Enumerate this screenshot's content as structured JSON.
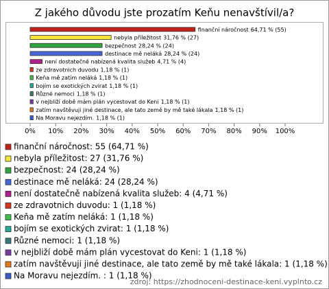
{
  "chart_data": {
    "type": "bar",
    "orientation": "horizontal",
    "title": "Z jakého důvodu jste prozatím Keňu nenavštívil/a?",
    "categories": [
      "finanční náročnost",
      "nebyla příležitost",
      "bezpečnost",
      "destinace mě neláká",
      "není dostatečně nabízená kvalita služeb",
      "ze zdravotnich duvodu",
      "Keňa mě zatím neláká",
      "bojím se exotických zvirat",
      "Různé nemoci",
      "v nejbliží době mám plán vycestovat do Keni",
      "zatím navštěvuji jiné destinace, ale tato země by mě také lákala",
      "Na Moravu nejezdím."
    ],
    "values": [
      64.71,
      31.76,
      28.24,
      28.24,
      4.71,
      1.18,
      1.18,
      1.18,
      1.18,
      1.18,
      1.18,
      1.18
    ],
    "counts": [
      55,
      27,
      24,
      24,
      4,
      1,
      1,
      1,
      1,
      1,
      1,
      1
    ],
    "value_labels": [
      "64,71 % (55)",
      "31,76 % (27)",
      "28,24 % (24)",
      "28,24 % (24)",
      "4,71 % (4)",
      "1,18 % (1)",
      "1,18 % (1)",
      "1,18 % (1)",
      "1,18 % (1)",
      "1,18 % (1)",
      "1,18 % (1)",
      "1,18 % (1)"
    ],
    "legend_labels": [
      "finanční náročnost: 55 (64,71 %)",
      "nebyla příležitost: 27 (31,76 %)",
      "bezpečnost: 24 (28,24 %)",
      "destinace mě neláká: 24 (28,24 %)",
      "není dostatečně nabízená kvalita služeb: 4 (4,71 %)",
      "ze zdravotnich duvodu: 1 (1,18 %)",
      "Keňa mě zatím neláká: 1 (1,18 %)",
      "bojím se exotických zvirat: 1 (1,18 %)",
      "Různé nemoci: 1 (1,18 %)",
      "v nejbliží době mám plán vycestovat do Keni: 1 (1,18 %)",
      "zatím navštěvuji jiné destinace, ale tato země by mě také lákala: 1 (1,18 %)",
      "Na Moravu nejezdím. : 1 (1,18 %)"
    ],
    "colors": [
      "#c0221a",
      "#f7e43a",
      "#2fa43c",
      "#4466d8",
      "#b0208c",
      "#d8331e",
      "#3cc04a",
      "#2aa89a",
      "#3b7a7a",
      "#7a3aa6",
      "#e07a18",
      "#3a5ac8"
    ],
    "xlim": [
      0,
      100
    ],
    "xticks": [
      {
        "value": 0,
        "label": "0%"
      },
      {
        "value": 10,
        "label": "10%"
      },
      {
        "value": 20,
        "label": "20%"
      },
      {
        "value": 30,
        "label": "30%"
      },
      {
        "value": 40,
        "label": "40%"
      },
      {
        "value": 50,
        "label": "50%"
      },
      {
        "value": 60,
        "label": "60%"
      },
      {
        "value": 70,
        "label": "70%"
      },
      {
        "value": 80,
        "label": "80%"
      },
      {
        "value": 90,
        "label": "90%"
      },
      {
        "value": 100,
        "label": "100%"
      }
    ],
    "source": "zdroj: https://zhodnoceni-destinace-keni.vyplnto.cz"
  }
}
